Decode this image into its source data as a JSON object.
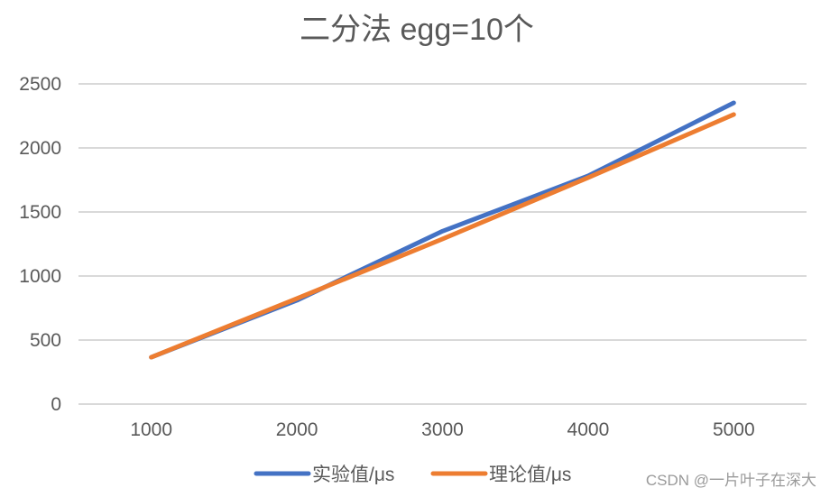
{
  "chart_data": {
    "type": "line",
    "title": "二分法 egg=10个",
    "xlabel": "",
    "ylabel": "",
    "categories": [
      "1000",
      "2000",
      "3000",
      "4000",
      "5000"
    ],
    "series": [
      {
        "name": "实验值/μs",
        "color": "#4472C4",
        "values": [
          366,
          810,
          1350,
          1782,
          2352
        ]
      },
      {
        "name": "理论值/μs",
        "color": "#ED7D31",
        "values": [
          366,
          824,
          1289,
          1768,
          2261
        ]
      }
    ],
    "ylim": [
      0,
      2500
    ],
    "yticks": [
      0,
      500,
      1000,
      1500,
      2000,
      2500
    ],
    "grid": true,
    "legend": "bottom"
  },
  "watermark": "CSDN @一片叶子在深大"
}
